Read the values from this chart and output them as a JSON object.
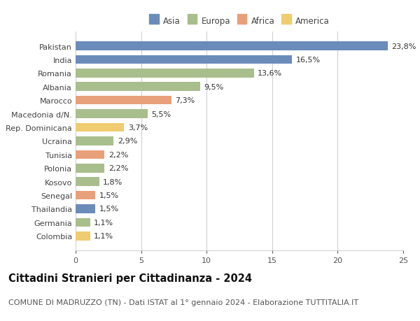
{
  "countries": [
    "Pakistan",
    "India",
    "Romania",
    "Albania",
    "Marocco",
    "Macedonia d/N.",
    "Rep. Dominicana",
    "Ucraina",
    "Tunisia",
    "Polonia",
    "Kosovo",
    "Senegal",
    "Thailandia",
    "Germania",
    "Colombia"
  ],
  "values": [
    23.8,
    16.5,
    13.6,
    9.5,
    7.3,
    5.5,
    3.7,
    2.9,
    2.2,
    2.2,
    1.8,
    1.5,
    1.5,
    1.1,
    1.1
  ],
  "labels": [
    "23,8%",
    "16,5%",
    "13,6%",
    "9,5%",
    "7,3%",
    "5,5%",
    "3,7%",
    "2,9%",
    "2,2%",
    "2,2%",
    "1,8%",
    "1,5%",
    "1,5%",
    "1,1%",
    "1,1%"
  ],
  "continents": [
    "Asia",
    "Asia",
    "Europa",
    "Europa",
    "Africa",
    "Europa",
    "America",
    "Europa",
    "Africa",
    "Europa",
    "Europa",
    "Africa",
    "Asia",
    "Europa",
    "America"
  ],
  "colors": {
    "Asia": "#6b8cba",
    "Europa": "#a8be8c",
    "Africa": "#e8a07a",
    "America": "#f0cc70"
  },
  "legend_order": [
    "Asia",
    "Europa",
    "Africa",
    "America"
  ],
  "xlim": [
    0,
    25
  ],
  "xticks": [
    0,
    5,
    10,
    15,
    20,
    25
  ],
  "title": "Cittadini Stranieri per Cittadinanza - 2024",
  "subtitle": "COMUNE DI MADRUZZO (TN) - Dati ISTAT al 1° gennaio 2024 - Elaborazione TUTTITALIA.IT",
  "bg_color": "#ffffff",
  "grid_color": "#cccccc",
  "bar_height": 0.65,
  "title_fontsize": 10.5,
  "subtitle_fontsize": 8,
  "label_fontsize": 8,
  "tick_fontsize": 8,
  "legend_fontsize": 8.5
}
